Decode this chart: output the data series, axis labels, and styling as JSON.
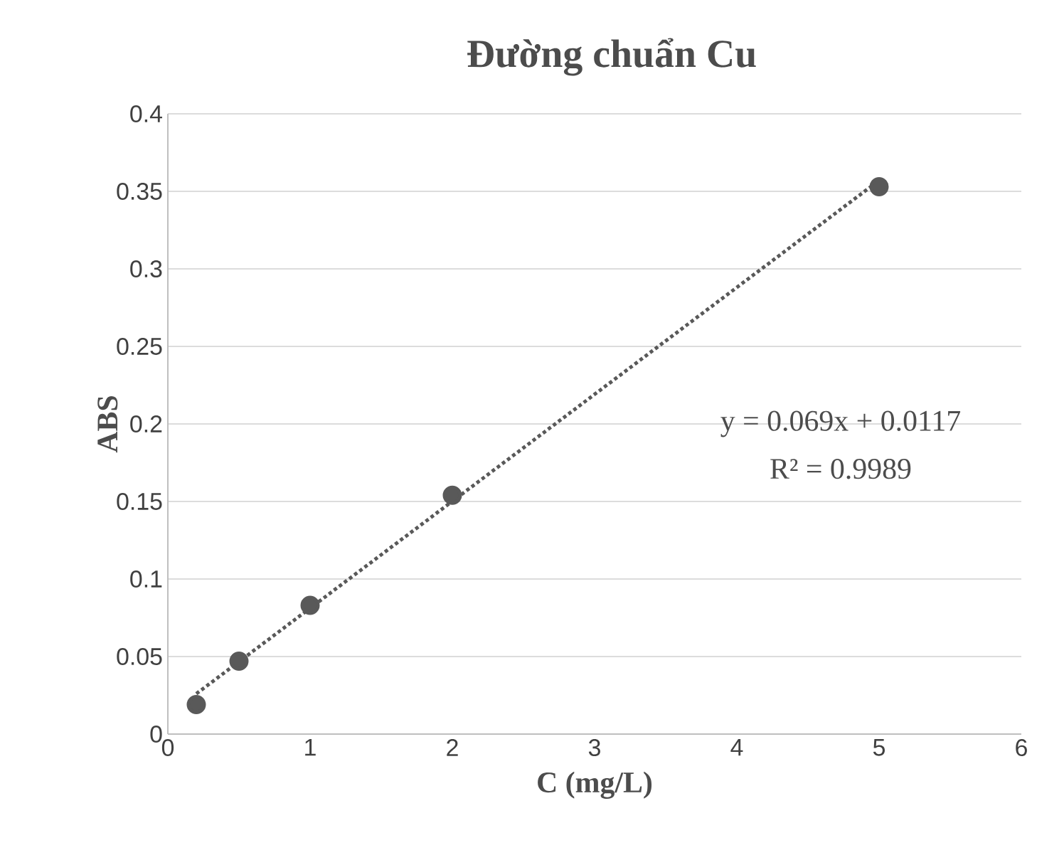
{
  "chart_data": {
    "type": "scatter",
    "title": "Đường chuẩn Cu",
    "xlabel": "C (mg/L)",
    "ylabel": "ABS",
    "annotations": [
      "y = 0.069x + 0.0117",
      "R² = 0.9989"
    ],
    "series": [
      {
        "color": "#595959",
        "marker": "circle",
        "x": [
          0.2,
          0.5,
          1,
          2,
          5
        ],
        "values": [
          0.019,
          0.047,
          0.083,
          0.154,
          0.353
        ]
      },
      {
        "type": "line",
        "color": "#595959",
        "line_style": "dotted",
        "marker": "none",
        "x": [
          0.2,
          5
        ],
        "values": [
          0.026,
          0.357
        ]
      }
    ],
    "xlim": [
      0,
      6
    ],
    "xticks": [
      0,
      1,
      2,
      3,
      4,
      5,
      6
    ],
    "ylim": [
      0,
      0.4
    ],
    "yticks": [
      0,
      0.05,
      0.1,
      0.15,
      0.2,
      0.25,
      0.3,
      0.35,
      0.4
    ],
    "grid": "y"
  }
}
